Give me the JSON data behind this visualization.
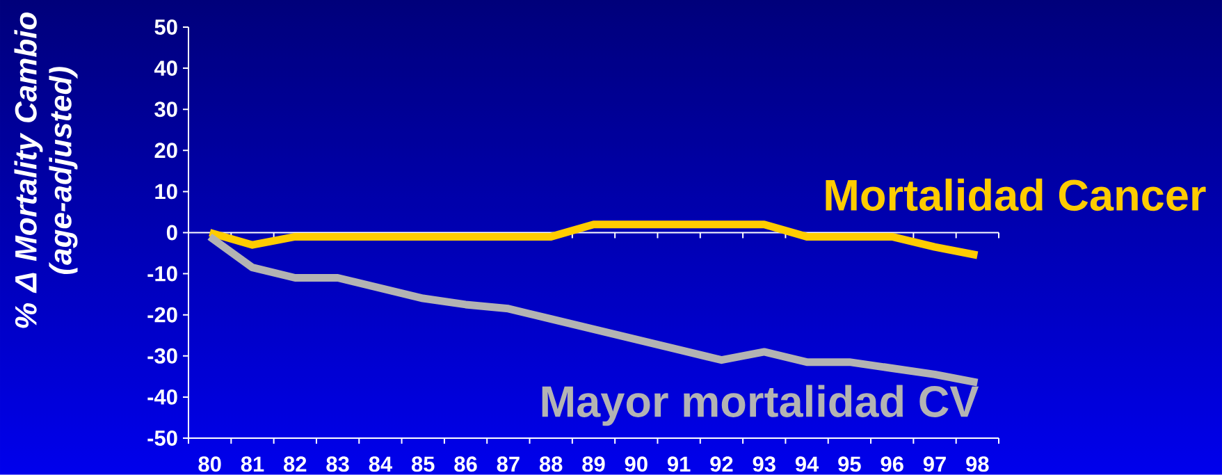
{
  "chart_data": {
    "type": "line",
    "ylabel": "% Δ Mortality Cambio (age-adjusted)",
    "categories": [
      "80",
      "81",
      "82",
      "83",
      "84",
      "85",
      "86",
      "87",
      "88",
      "89",
      "90",
      "91",
      "92",
      "93",
      "94",
      "95",
      "96",
      "97",
      "98"
    ],
    "series": [
      {
        "name": "Mortalidad Cancer",
        "color": "#ffcc00",
        "values": [
          0,
          -3,
          -1,
          -1,
          -1,
          -1,
          -1,
          -1,
          -1,
          2,
          2,
          2,
          2,
          2,
          -1,
          -1,
          -1,
          -3.5,
          -5.5
        ]
      },
      {
        "name": "Mayor mortalidad CV",
        "color": "#b3b3b3",
        "values": [
          -1,
          -8.5,
          -11,
          -11,
          -13.5,
          -16,
          -17.5,
          -18.5,
          -21,
          -23.5,
          -26,
          -28.5,
          -31,
          -29,
          -31.5,
          -31.5,
          -33,
          -34.5,
          -36.5
        ]
      }
    ],
    "ylim": [
      -50,
      50
    ],
    "yticks": [
      -50,
      -40,
      -30,
      -20,
      -10,
      0,
      10,
      20,
      30,
      40,
      50
    ],
    "ref_lines": [
      {
        "axis": "y",
        "value": 0,
        "color": "#ffffff"
      }
    ]
  }
}
